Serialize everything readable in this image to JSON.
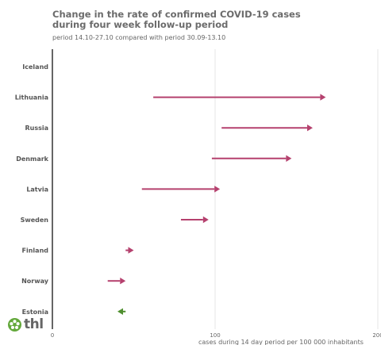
{
  "header": {
    "title_line1": "Change in the rate of confirmed COVID-19 cases",
    "title_line2": "during four week follow-up period",
    "subtitle": "period 14.10-27.10 compared with period 30.09-13.10"
  },
  "logo": {
    "text": "thl",
    "icon": "flower-icon"
  },
  "colors": {
    "increase": "#b5416e",
    "decrease": "#4f8f2f",
    "axis": "#333333",
    "grid": "#e6e6e6",
    "label": "#555555"
  },
  "chart_data": {
    "type": "dumbbell-arrow",
    "title": "Change in the rate of confirmed COVID-19 cases during four week follow-up period",
    "subtitle": "period 14.10-27.10 compared with period 30.09-13.10",
    "xlabel": "cases during 14 day period per 100 000 inhabitants",
    "xlim": [
      0,
      200
    ],
    "xticks": [
      0,
      100,
      200
    ],
    "grid": true,
    "series": [
      {
        "category": "Iceland",
        "from": null,
        "to": null
      },
      {
        "category": "Lithuania",
        "from": 62,
        "to": 168
      },
      {
        "category": "Russia",
        "from": 104,
        "to": 160
      },
      {
        "category": "Denmark",
        "from": 98,
        "to": 147
      },
      {
        "category": "Latvia",
        "from": 55,
        "to": 103
      },
      {
        "category": "Sweden",
        "from": 79,
        "to": 96
      },
      {
        "category": "Finland",
        "from": 45,
        "to": 50
      },
      {
        "category": "Norway",
        "from": 34,
        "to": 45
      },
      {
        "category": "Estonia",
        "from": 45,
        "to": 40
      }
    ]
  }
}
